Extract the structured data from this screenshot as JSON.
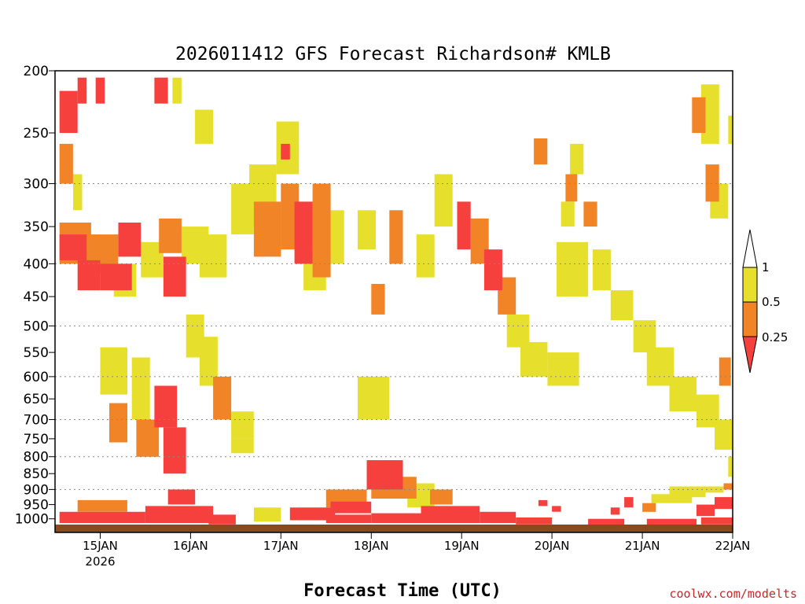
{
  "chart_data": {
    "type": "heatmap",
    "title": "2026011412 GFS Forecast Richardson# KMLB",
    "xlabel": "Forecast Time (UTC)",
    "ylabel": "",
    "credit": "coolwx.com/modelts",
    "x_axis": {
      "start_day": 14.5,
      "end_day": 22.0,
      "ticks": [
        {
          "day": 15,
          "label": "15JAN",
          "sublabel": "2026"
        },
        {
          "day": 16,
          "label": "16JAN"
        },
        {
          "day": 17,
          "label": "17JAN"
        },
        {
          "day": 18,
          "label": "18JAN"
        },
        {
          "day": 19,
          "label": "19JAN"
        },
        {
          "day": 20,
          "label": "20JAN"
        },
        {
          "day": 21,
          "label": "21JAN"
        },
        {
          "day": 22,
          "label": "22JAN"
        }
      ]
    },
    "y_axis": {
      "scale": "log",
      "top_hpa": 200,
      "bottom_hpa": 1050,
      "ticks": [
        200,
        250,
        300,
        350,
        400,
        450,
        500,
        550,
        600,
        650,
        700,
        750,
        800,
        850,
        900,
        950,
        1000
      ],
      "gridlines": [
        300,
        400,
        500,
        600,
        700,
        800,
        900
      ]
    },
    "colorbar": {
      "levels": [
        {
          "label": "1",
          "value": 1,
          "color": "#ffffff"
        },
        {
          "label": "0.5",
          "value": 0.5,
          "color": "#e6e02d"
        },
        {
          "label": "0.25",
          "value": 0.25,
          "color": "#f08426"
        },
        {
          "label": "",
          "value": 0,
          "color": "#f5403d"
        }
      ],
      "categories": {
        "Y": {
          "range": "0.5-1",
          "color": "#e6e02d"
        },
        "O": {
          "range": "0.25-0.5",
          "color": "#f08426"
        },
        "R": {
          "range": "<0.25",
          "color": "#f5403d"
        }
      }
    },
    "ground_color": "#8b4a1c",
    "cells": [
      [
        14.55,
        14.75,
        215,
        250,
        "R"
      ],
      [
        14.55,
        14.7,
        260,
        300,
        "O"
      ],
      [
        14.7,
        14.8,
        290,
        330,
        "Y"
      ],
      [
        14.55,
        14.9,
        345,
        400,
        "O"
      ],
      [
        14.55,
        14.85,
        360,
        395,
        "R"
      ],
      [
        14.75,
        15.0,
        395,
        440,
        "R"
      ],
      [
        14.85,
        15.2,
        360,
        415,
        "O"
      ],
      [
        15.0,
        15.35,
        400,
        440,
        "R"
      ],
      [
        15.2,
        15.45,
        345,
        390,
        "R"
      ],
      [
        15.15,
        15.4,
        400,
        450,
        "Y"
      ],
      [
        14.75,
        14.85,
        205,
        225,
        "R"
      ],
      [
        14.95,
        15.05,
        205,
        225,
        "R"
      ],
      [
        15.6,
        15.75,
        205,
        225,
        "R"
      ],
      [
        15.8,
        15.9,
        205,
        225,
        "Y"
      ],
      [
        15.65,
        15.9,
        340,
        385,
        "O"
      ],
      [
        15.45,
        15.7,
        370,
        420,
        "Y"
      ],
      [
        15.7,
        15.95,
        390,
        450,
        "R"
      ],
      [
        15.9,
        16.2,
        350,
        400,
        "Y"
      ],
      [
        16.05,
        16.25,
        230,
        260,
        "Y"
      ],
      [
        16.1,
        16.4,
        360,
        420,
        "Y"
      ],
      [
        15.0,
        15.3,
        540,
        640,
        "Y"
      ],
      [
        15.1,
        15.3,
        660,
        760,
        "O"
      ],
      [
        15.35,
        15.55,
        560,
        700,
        "Y"
      ],
      [
        15.4,
        15.65,
        700,
        800,
        "O"
      ],
      [
        15.6,
        15.85,
        620,
        720,
        "R"
      ],
      [
        15.7,
        15.95,
        720,
        850,
        "R"
      ],
      [
        15.95,
        16.15,
        480,
        560,
        "Y"
      ],
      [
        16.1,
        16.3,
        520,
        620,
        "Y"
      ],
      [
        16.25,
        16.45,
        600,
        700,
        "O"
      ],
      [
        16.45,
        16.7,
        680,
        750,
        "Y"
      ],
      [
        16.45,
        16.7,
        300,
        360,
        "Y"
      ],
      [
        16.65,
        16.95,
        280,
        350,
        "Y"
      ],
      [
        16.7,
        17.0,
        320,
        390,
        "O"
      ],
      [
        16.95,
        17.2,
        240,
        290,
        "Y"
      ],
      [
        17.0,
        17.2,
        300,
        380,
        "O"
      ],
      [
        17.15,
        17.35,
        320,
        400,
        "R"
      ],
      [
        17.25,
        17.5,
        380,
        440,
        "Y"
      ],
      [
        17.35,
        17.55,
        300,
        420,
        "O"
      ],
      [
        17.55,
        17.7,
        330,
        400,
        "Y"
      ],
      [
        17.85,
        18.05,
        330,
        380,
        "Y"
      ],
      [
        18.0,
        18.15,
        430,
        480,
        "O"
      ],
      [
        18.2,
        18.35,
        330,
        400,
        "O"
      ],
      [
        18.5,
        18.7,
        360,
        420,
        "Y"
      ],
      [
        18.7,
        18.9,
        290,
        350,
        "Y"
      ],
      [
        18.95,
        19.1,
        320,
        380,
        "R"
      ],
      [
        19.1,
        19.3,
        340,
        400,
        "O"
      ],
      [
        19.25,
        19.45,
        380,
        440,
        "R"
      ],
      [
        19.4,
        19.6,
        420,
        480,
        "O"
      ],
      [
        19.5,
        19.75,
        480,
        540,
        "Y"
      ],
      [
        19.65,
        19.95,
        530,
        600,
        "Y"
      ],
      [
        19.95,
        20.3,
        550,
        620,
        "Y"
      ],
      [
        20.05,
        20.4,
        370,
        450,
        "Y"
      ],
      [
        20.45,
        20.65,
        380,
        440,
        "Y"
      ],
      [
        20.65,
        20.9,
        440,
        490,
        "Y"
      ],
      [
        20.9,
        21.15,
        490,
        550,
        "Y"
      ],
      [
        21.05,
        21.35,
        540,
        620,
        "Y"
      ],
      [
        21.3,
        21.6,
        600,
        680,
        "Y"
      ],
      [
        21.6,
        21.85,
        640,
        720,
        "Y"
      ],
      [
        21.8,
        22.0,
        700,
        780,
        "Y"
      ],
      [
        21.85,
        21.98,
        560,
        620,
        "O"
      ],
      [
        21.95,
        22.0,
        800,
        860,
        "Y"
      ],
      [
        21.55,
        21.7,
        220,
        250,
        "O"
      ],
      [
        21.65,
        21.85,
        210,
        260,
        "Y"
      ],
      [
        21.7,
        21.85,
        280,
        320,
        "O"
      ],
      [
        21.75,
        21.95,
        300,
        340,
        "Y"
      ],
      [
        21.95,
        22.0,
        235,
        260,
        "Y"
      ],
      [
        19.8,
        19.95,
        255,
        280,
        "O"
      ],
      [
        20.2,
        20.35,
        260,
        290,
        "Y"
      ],
      [
        20.15,
        20.28,
        290,
        320,
        "O"
      ],
      [
        20.35,
        20.5,
        320,
        350,
        "O"
      ],
      [
        20.1,
        20.25,
        320,
        350,
        "Y"
      ],
      [
        17.85,
        18.2,
        600,
        700,
        "Y"
      ],
      [
        16.45,
        16.7,
        750,
        790,
        "Y"
      ],
      [
        17.0,
        17.1,
        260,
        275,
        "R"
      ],
      [
        17.95,
        18.35,
        810,
        900,
        "R"
      ],
      [
        18.0,
        18.5,
        860,
        930,
        "O"
      ],
      [
        17.5,
        17.95,
        900,
        960,
        "O"
      ],
      [
        17.55,
        18.0,
        940,
        980,
        "R"
      ],
      [
        18.4,
        18.7,
        880,
        960,
        "Y"
      ],
      [
        18.65,
        18.9,
        900,
        950,
        "O"
      ],
      [
        14.55,
        15.5,
        975,
        1015,
        "R"
      ],
      [
        14.75,
        15.3,
        935,
        975,
        "O"
      ],
      [
        15.5,
        16.25,
        955,
        1015,
        "R"
      ],
      [
        15.75,
        16.05,
        900,
        950,
        "R"
      ],
      [
        16.2,
        16.5,
        985,
        1020,
        "R"
      ],
      [
        16.7,
        17.0,
        960,
        1010,
        "Y"
      ],
      [
        17.1,
        17.6,
        960,
        1005,
        "R"
      ],
      [
        17.5,
        18.0,
        985,
        1015,
        "R"
      ],
      [
        18.0,
        18.55,
        980,
        1015,
        "R"
      ],
      [
        18.55,
        19.2,
        955,
        1015,
        "R"
      ],
      [
        19.2,
        19.6,
        975,
        1015,
        "R"
      ],
      [
        19.6,
        20.0,
        995,
        1020,
        "R"
      ],
      [
        19.85,
        19.95,
        935,
        955,
        "R"
      ],
      [
        20.0,
        20.1,
        955,
        975,
        "R"
      ],
      [
        20.8,
        20.9,
        925,
        960,
        "R"
      ],
      [
        20.65,
        20.75,
        960,
        985,
        "R"
      ],
      [
        21.0,
        21.15,
        945,
        975,
        "O"
      ],
      [
        21.1,
        21.55,
        915,
        945,
        "Y"
      ],
      [
        21.3,
        21.7,
        890,
        925,
        "Y"
      ],
      [
        21.6,
        21.8,
        950,
        990,
        "R"
      ],
      [
        21.65,
        22.0,
        995,
        1020,
        "R"
      ],
      [
        21.8,
        22.0,
        925,
        965,
        "R"
      ],
      [
        21.7,
        21.9,
        890,
        910,
        "Y"
      ],
      [
        21.9,
        22.0,
        880,
        900,
        "O"
      ],
      [
        21.05,
        21.6,
        1000,
        1025,
        "R"
      ],
      [
        20.4,
        20.8,
        1000,
        1025,
        "R"
      ]
    ]
  }
}
